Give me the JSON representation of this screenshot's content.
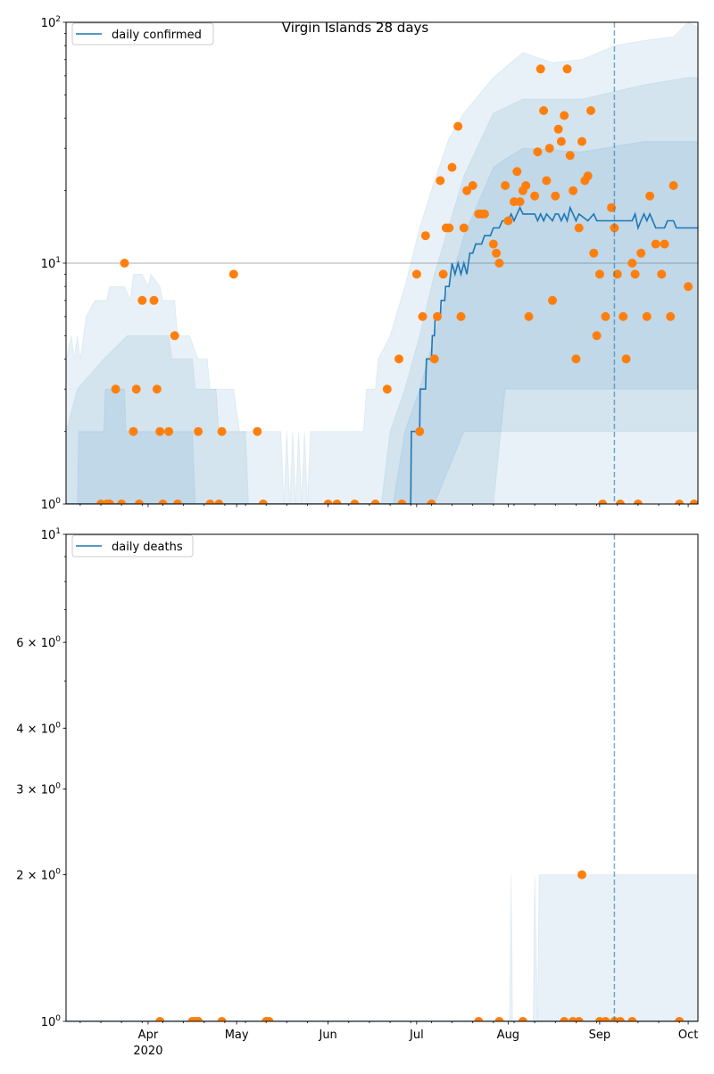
{
  "chart_data": [
    {
      "type": "line",
      "title": "Virgin Islands 28 days",
      "x_units": "days since 2020-03-01",
      "xlim": [
        3.2,
        217.3
      ],
      "ylim": [
        1,
        100
      ],
      "yscale": "log",
      "grid": "horizontal major",
      "legend": {
        "label": "daily confirmed",
        "placement": "upper-left"
      },
      "y_ticks": [
        {
          "value": 1,
          "base": "10",
          "exp": "0"
        },
        {
          "value": 10,
          "base": "10",
          "exp": "1"
        },
        {
          "value": 100,
          "base": "10",
          "exp": "2"
        }
      ],
      "vline_day": 189,
      "median": [
        [
          3.2,
          1
        ],
        [
          120,
          1
        ],
        [
          120.2,
          2
        ],
        [
          123,
          2
        ],
        [
          123.2,
          3
        ],
        [
          125,
          3
        ],
        [
          125.3,
          4
        ],
        [
          127,
          4
        ],
        [
          127.3,
          5
        ],
        [
          128,
          5
        ],
        [
          128.3,
          6
        ],
        [
          130,
          6
        ],
        [
          130.3,
          7
        ],
        [
          131.5,
          7
        ],
        [
          131.8,
          8
        ],
        [
          133,
          8
        ],
        [
          134,
          10
        ],
        [
          135,
          9
        ],
        [
          136,
          10
        ],
        [
          137,
          9
        ],
        [
          138,
          10
        ],
        [
          139,
          9
        ],
        [
          140,
          11
        ],
        [
          141,
          11
        ],
        [
          142,
          12
        ],
        [
          144,
          12
        ],
        [
          145,
          13
        ],
        [
          147,
          13
        ],
        [
          148,
          14
        ],
        [
          150,
          14
        ],
        [
          151,
          15
        ],
        [
          153,
          15
        ],
        [
          154,
          16
        ],
        [
          155,
          15
        ],
        [
          156,
          16
        ],
        [
          157,
          17
        ],
        [
          158,
          16
        ],
        [
          162,
          16
        ],
        [
          163,
          15
        ],
        [
          164,
          16
        ],
        [
          165,
          15
        ],
        [
          166,
          16
        ],
        [
          168,
          15
        ],
        [
          169,
          16
        ],
        [
          170,
          16
        ],
        [
          171,
          15
        ],
        [
          172,
          16
        ],
        [
          173,
          15
        ],
        [
          174,
          17
        ],
        [
          175,
          16
        ],
        [
          176,
          15
        ],
        [
          177,
          16
        ],
        [
          180,
          15
        ],
        [
          182,
          16
        ],
        [
          183,
          15
        ],
        [
          195,
          15
        ],
        [
          196,
          16
        ],
        [
          197,
          14
        ],
        [
          198,
          15
        ],
        [
          199,
          16
        ],
        [
          200,
          15
        ],
        [
          201,
          16
        ],
        [
          202,
          15
        ],
        [
          203,
          14
        ],
        [
          206,
          14
        ],
        [
          207,
          15
        ],
        [
          209,
          15
        ],
        [
          210,
          14
        ],
        [
          217.3,
          14
        ]
      ],
      "bands": [
        [
          [
            3.2,
            1,
            4
          ],
          [
            5,
            1,
            5
          ],
          [
            6,
            1,
            4
          ],
          [
            7,
            1,
            5
          ],
          [
            8,
            1,
            4
          ],
          [
            10,
            1,
            6
          ],
          [
            13,
            1,
            7
          ],
          [
            17,
            1,
            7
          ],
          [
            18,
            1,
            8
          ],
          [
            23,
            1,
            8
          ],
          [
            25,
            1,
            7
          ],
          [
            26,
            1,
            9
          ],
          [
            29,
            1,
            9
          ],
          [
            31,
            1,
            8
          ],
          [
            32,
            1,
            9
          ],
          [
            35,
            1,
            8
          ],
          [
            36,
            1,
            7
          ],
          [
            40,
            1,
            7
          ],
          [
            41,
            1,
            5
          ],
          [
            45,
            1,
            5
          ],
          [
            48,
            1,
            4
          ],
          [
            51,
            1,
            4
          ],
          [
            52,
            1,
            3
          ],
          [
            60,
            1,
            3
          ],
          [
            62,
            1,
            2
          ],
          [
            76,
            1,
            2
          ],
          [
            77,
            1,
            1
          ],
          [
            78,
            1,
            2
          ],
          [
            79,
            1,
            1
          ],
          [
            80,
            1,
            2
          ],
          [
            81,
            1,
            1
          ],
          [
            82,
            1,
            2
          ],
          [
            83,
            1,
            1
          ],
          [
            84,
            1,
            2
          ],
          [
            85,
            1,
            1
          ],
          [
            86,
            1,
            2
          ],
          [
            104,
            1,
            2
          ],
          [
            105,
            1,
            3
          ],
          [
            108,
            1,
            3
          ],
          [
            109,
            1,
            4
          ],
          [
            113,
            1,
            5
          ],
          [
            118,
            1,
            8
          ],
          [
            123,
            1,
            14
          ],
          [
            128,
            1,
            22
          ],
          [
            133,
            1,
            33
          ],
          [
            138,
            1,
            42
          ],
          [
            148,
            1,
            59
          ],
          [
            158,
            1,
            75
          ],
          [
            168,
            1,
            68
          ],
          [
            178,
            1,
            70
          ],
          [
            189,
            1,
            80
          ],
          [
            199,
            1,
            84
          ],
          [
            209,
            1,
            87
          ],
          [
            214,
            1,
            100
          ],
          [
            217.3,
            1,
            95
          ]
        ],
        [
          [
            3.2,
            1,
            2
          ],
          [
            7,
            1,
            3
          ],
          [
            16,
            1,
            4
          ],
          [
            24,
            1,
            5
          ],
          [
            38,
            1,
            5
          ],
          [
            39,
            1,
            4
          ],
          [
            46,
            1,
            4
          ],
          [
            47,
            1,
            3
          ],
          [
            54,
            1,
            3
          ],
          [
            55,
            1,
            2
          ],
          [
            64,
            1,
            2
          ],
          [
            65,
            1,
            1
          ],
          [
            110,
            1,
            1
          ],
          [
            113,
            1,
            2
          ],
          [
            118,
            1,
            3
          ],
          [
            123,
            1,
            5
          ],
          [
            128,
            1,
            9
          ],
          [
            138,
            2,
            23
          ],
          [
            148,
            2,
            42
          ],
          [
            158,
            2,
            48
          ],
          [
            178,
            2,
            48
          ],
          [
            199,
            2,
            55
          ],
          [
            214,
            2,
            59
          ],
          [
            217.3,
            2,
            59
          ]
        ],
        [
          [
            3.2,
            1,
            1
          ],
          [
            7,
            1,
            1
          ],
          [
            7.5,
            1,
            2
          ],
          [
            16,
            1,
            2
          ],
          [
            16.5,
            1,
            3
          ],
          [
            23,
            1,
            3
          ],
          [
            23.5,
            1,
            2
          ],
          [
            46,
            1,
            2
          ],
          [
            47,
            1,
            1
          ],
          [
            114,
            1,
            1
          ],
          [
            118,
            1,
            2
          ],
          [
            123,
            1,
            3
          ],
          [
            128,
            1,
            5
          ],
          [
            138,
            1,
            13
          ],
          [
            148,
            1,
            25
          ],
          [
            152,
            3,
            27
          ],
          [
            158,
            3,
            30
          ],
          [
            178,
            3,
            29
          ],
          [
            199,
            3,
            32
          ],
          [
            217.3,
            3,
            32
          ]
        ]
      ],
      "observed": [
        [
          15,
          1
        ],
        [
          17,
          1
        ],
        [
          18,
          1
        ],
        [
          20,
          3
        ],
        [
          22,
          1
        ],
        [
          23,
          10
        ],
        [
          26,
          2
        ],
        [
          27,
          3
        ],
        [
          28,
          1
        ],
        [
          29,
          7
        ],
        [
          33,
          7
        ],
        [
          34,
          3
        ],
        [
          35,
          2
        ],
        [
          36,
          1
        ],
        [
          38,
          2
        ],
        [
          40,
          5
        ],
        [
          41,
          1
        ],
        [
          48,
          2
        ],
        [
          52,
          1
        ],
        [
          55,
          1
        ],
        [
          56,
          2
        ],
        [
          60,
          9
        ],
        [
          68,
          2
        ],
        [
          70,
          1
        ],
        [
          92,
          1
        ],
        [
          95,
          1
        ],
        [
          101,
          1
        ],
        [
          108,
          1
        ],
        [
          112,
          3
        ],
        [
          116,
          4
        ],
        [
          117,
          1
        ],
        [
          122,
          9
        ],
        [
          123,
          2
        ],
        [
          124,
          6
        ],
        [
          125,
          13
        ],
        [
          127,
          1
        ],
        [
          128,
          4
        ],
        [
          129,
          6
        ],
        [
          130,
          22
        ],
        [
          131,
          9
        ],
        [
          132,
          14
        ],
        [
          133,
          14
        ],
        [
          134,
          25
        ],
        [
          136,
          37
        ],
        [
          137,
          6
        ],
        [
          138,
          14
        ],
        [
          139,
          20
        ],
        [
          141,
          21
        ],
        [
          143,
          16
        ],
        [
          144,
          16
        ],
        [
          145,
          16
        ],
        [
          148,
          12
        ],
        [
          149,
          11
        ],
        [
          150,
          10
        ],
        [
          152,
          21
        ],
        [
          153,
          15
        ],
        [
          155,
          18
        ],
        [
          156,
          24
        ],
        [
          157,
          18
        ],
        [
          158,
          20
        ],
        [
          159,
          21
        ],
        [
          160,
          6
        ],
        [
          162,
          19
        ],
        [
          163,
          29
        ],
        [
          164,
          64
        ],
        [
          165,
          43
        ],
        [
          166,
          22
        ],
        [
          167,
          30
        ],
        [
          168,
          7
        ],
        [
          169,
          19
        ],
        [
          170,
          36
        ],
        [
          171,
          32
        ],
        [
          172,
          41
        ],
        [
          173,
          64
        ],
        [
          174,
          28
        ],
        [
          175,
          20
        ],
        [
          176,
          4
        ],
        [
          177,
          14
        ],
        [
          178,
          32
        ],
        [
          179,
          22
        ],
        [
          180,
          23
        ],
        [
          181,
          43
        ],
        [
          182,
          11
        ],
        [
          183,
          5
        ],
        [
          184,
          9
        ],
        [
          185,
          1
        ],
        [
          186,
          6
        ],
        [
          188,
          17
        ],
        [
          189,
          14
        ],
        [
          190,
          9
        ],
        [
          191,
          1
        ],
        [
          192,
          6
        ],
        [
          193,
          4
        ],
        [
          195,
          10
        ],
        [
          196,
          9
        ],
        [
          197,
          1
        ],
        [
          198,
          11
        ],
        [
          200,
          6
        ],
        [
          201,
          19
        ],
        [
          203,
          12
        ],
        [
          205,
          9
        ],
        [
          206,
          12
        ],
        [
          208,
          6
        ],
        [
          209,
          21
        ],
        [
          211,
          1
        ],
        [
          214,
          8
        ],
        [
          216,
          1
        ]
      ]
    },
    {
      "type": "line",
      "x_units": "days since 2020-03-01",
      "xlim": [
        3.2,
        217.3
      ],
      "ylim": [
        1,
        10
      ],
      "yscale": "log",
      "legend": {
        "label": "daily deaths",
        "placement": "upper-left"
      },
      "y_ticks": [
        {
          "value": 1,
          "base": "10",
          "exp": "0"
        },
        {
          "value": 2,
          "base": "2 × 10",
          "exp": "0"
        },
        {
          "value": 3,
          "base": "3 × 10",
          "exp": "0"
        },
        {
          "value": 4,
          "base": "4 × 10",
          "exp": "0"
        },
        {
          "value": 6,
          "base": "6 × 10",
          "exp": "0"
        },
        {
          "value": 10,
          "base": "10",
          "exp": "1"
        }
      ],
      "x_ticks": [
        {
          "day": 31,
          "label": "Apr",
          "sublabel": "2020"
        },
        {
          "day": 61,
          "label": "May"
        },
        {
          "day": 92,
          "label": "Jun"
        },
        {
          "day": 122,
          "label": "Jul"
        },
        {
          "day": 153,
          "label": "Aug"
        },
        {
          "day": 184,
          "label": "Sep"
        },
        {
          "day": 214,
          "label": "Oct"
        }
      ],
      "vline_day": 189,
      "median": [
        [
          3.2,
          1
        ],
        [
          217.3,
          1
        ]
      ],
      "bands": [
        [
          [
            3.2,
            1,
            1
          ],
          [
            153.5,
            1,
            1
          ],
          [
            154,
            1,
            2
          ],
          [
            154.5,
            1,
            1
          ],
          [
            161.5,
            1,
            1
          ],
          [
            162,
            1,
            2
          ],
          [
            163,
            1,
            1
          ],
          [
            163.5,
            1,
            2
          ],
          [
            217.3,
            1,
            2
          ]
        ]
      ],
      "observed": [
        [
          35,
          1
        ],
        [
          46,
          1
        ],
        [
          47,
          1
        ],
        [
          48,
          1
        ],
        [
          56,
          1
        ],
        [
          71,
          1
        ],
        [
          72,
          1
        ],
        [
          143,
          1
        ],
        [
          150,
          1
        ],
        [
          158,
          1
        ],
        [
          172,
          1
        ],
        [
          175,
          1
        ],
        [
          177,
          1
        ],
        [
          178,
          2
        ],
        [
          184,
          1
        ],
        [
          186,
          1
        ],
        [
          189,
          1
        ],
        [
          191,
          1
        ],
        [
          195,
          1
        ],
        [
          211,
          1
        ]
      ]
    }
  ],
  "colors": {
    "median": "#1f77b4",
    "band": "#1f77b4",
    "observed": "#ff7f0e",
    "grid": "#b0b0b0"
  }
}
